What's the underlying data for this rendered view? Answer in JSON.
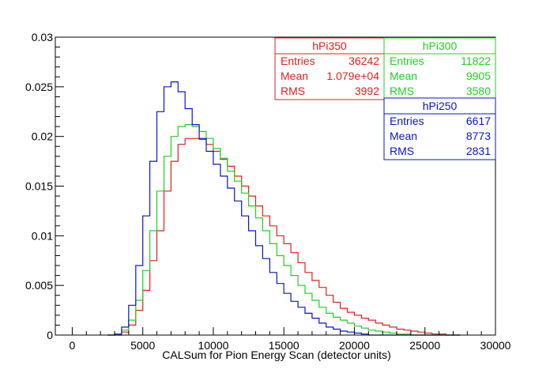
{
  "chart_data": {
    "type": "line",
    "title": "",
    "xlabel": "CALSum for Pion Energy Scan (detector units)",
    "ylabel": "",
    "xlim": [
      -1200,
      30000
    ],
    "ylim": [
      0,
      0.03
    ],
    "x_ticks": [
      0,
      5000,
      10000,
      15000,
      20000,
      25000,
      30000
    ],
    "y_ticks": [
      0,
      0.005,
      0.01,
      0.015,
      0.02,
      0.025,
      0.03
    ],
    "x_tick_labels": [
      "0",
      "5000",
      "10000",
      "15000",
      "20000",
      "25000",
      "30000"
    ],
    "y_tick_labels": [
      "0",
      "0.005",
      "0.01",
      "0.015",
      "0.02",
      "0.025",
      "0.03"
    ],
    "grid": false,
    "legend": "top-right stat boxes",
    "bin_x": [
      2500,
      3000,
      3500,
      4000,
      4500,
      5000,
      5500,
      6000,
      6500,
      7000,
      7500,
      8000,
      8500,
      9000,
      9500,
      10000,
      10500,
      11000,
      11500,
      12000,
      12500,
      13000,
      13500,
      14000,
      14500,
      15000,
      15500,
      16000,
      16500,
      17000,
      17500,
      18000,
      18500,
      19000,
      19500,
      20000,
      20500,
      21000,
      21500,
      22000,
      22500,
      23000,
      23500,
      24000,
      24500,
      25000,
      25500,
      26000,
      26500,
      27000
    ],
    "series": [
      {
        "name": "hPi350",
        "color": "#e02020",
        "values": [
          0,
          0,
          0.0003,
          0.001,
          0.0025,
          0.0045,
          0.0075,
          0.0105,
          0.0145,
          0.0175,
          0.0192,
          0.0198,
          0.0198,
          0.0197,
          0.0192,
          0.0185,
          0.0177,
          0.017,
          0.016,
          0.015,
          0.014,
          0.013,
          0.012,
          0.011,
          0.01,
          0.0092,
          0.0083,
          0.0073,
          0.0063,
          0.0055,
          0.0048,
          0.004,
          0.0033,
          0.0027,
          0.0023,
          0.002,
          0.0017,
          0.0015,
          0.0012,
          0.001,
          0.0008,
          0.0006,
          0.0005,
          0.0004,
          0.0003,
          0.0002,
          0.0001,
          0.0001,
          0,
          0
        ],
        "stats": {
          "title": "hPi350",
          "entries": "36242",
          "mean": "1.079e+04",
          "rms": "3992"
        }
      },
      {
        "name": "hPi300",
        "color": "#20d020",
        "values": [
          0,
          0,
          0.0005,
          0.0015,
          0.0035,
          0.0065,
          0.0105,
          0.0145,
          0.018,
          0.02,
          0.021,
          0.0212,
          0.021,
          0.0205,
          0.0198,
          0.0188,
          0.0178,
          0.0165,
          0.0155,
          0.0143,
          0.013,
          0.0118,
          0.0105,
          0.0092,
          0.008,
          0.007,
          0.006,
          0.005,
          0.0042,
          0.0035,
          0.0028,
          0.0022,
          0.0018,
          0.0015,
          0.0012,
          0.0009,
          0.0007,
          0.0005,
          0.0004,
          0.0003,
          0.0002,
          0.0001,
          0.0001,
          0,
          0,
          0,
          0,
          0,
          0,
          0
        ],
        "stats": {
          "title": "hPi300",
          "entries": "11822",
          "mean": "9905",
          "rms": "3580"
        }
      },
      {
        "name": "hPi250",
        "color": "#0a14c8",
        "values": [
          0,
          0.0001,
          0.0008,
          0.003,
          0.007,
          0.012,
          0.0175,
          0.0225,
          0.025,
          0.0255,
          0.0245,
          0.0228,
          0.0212,
          0.0198,
          0.0185,
          0.0172,
          0.016,
          0.0148,
          0.0135,
          0.012,
          0.0105,
          0.009,
          0.0077,
          0.0063,
          0.0052,
          0.0042,
          0.0034,
          0.0028,
          0.0022,
          0.0017,
          0.0012,
          0.0008,
          0.0006,
          0.0004,
          0.0003,
          0.0002,
          0.0001,
          0,
          0,
          0,
          0,
          0,
          0,
          0,
          0,
          0,
          0,
          0,
          0,
          0
        ],
        "stats": {
          "title": "hPi250",
          "entries": "6617",
          "mean": "8773",
          "rms": "2831"
        }
      }
    ],
    "stat_labels": {
      "entries": "Entries",
      "mean": "Mean",
      "rms": "RMS"
    }
  }
}
